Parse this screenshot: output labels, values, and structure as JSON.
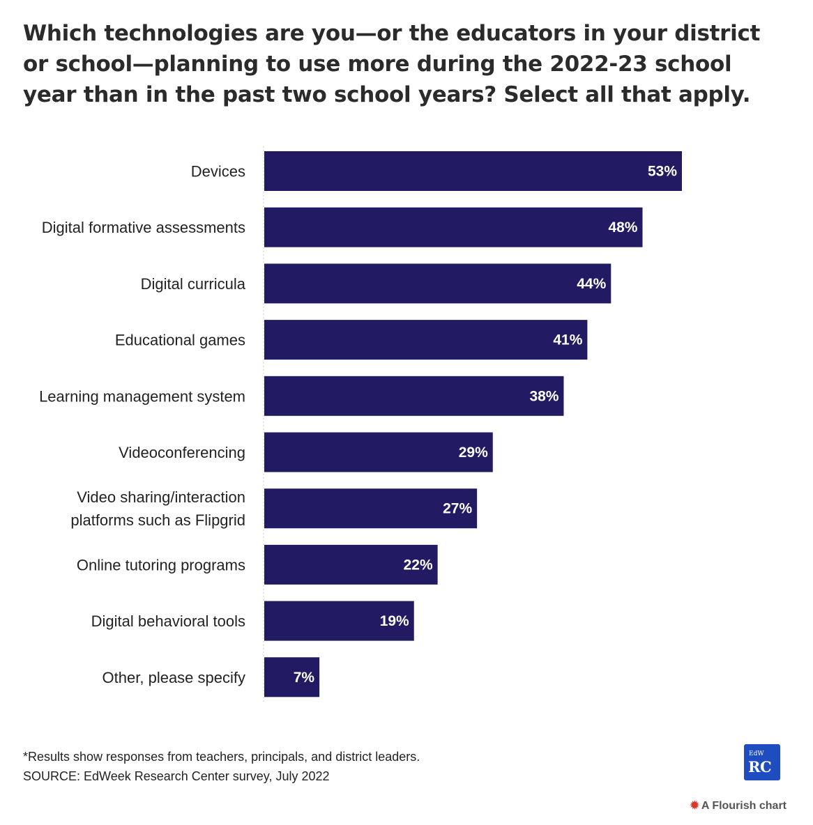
{
  "title": "Which technologies are you—or the educators in your district or school—planning to use more during the 2022-23 school year than in the past two school years? Select all that apply.",
  "footnote": "*Results show responses from teachers, principals, and district leaders.",
  "source": "SOURCE: EdWeek Research Center survey, July 2022",
  "logo": {
    "top": "EdW",
    "bottom": "RC"
  },
  "credit": "A Flourish chart",
  "colors": {
    "bar": "#221a63",
    "axis": "#cccccc",
    "text": "#222222"
  },
  "chart_data": {
    "type": "bar",
    "orientation": "horizontal",
    "categories": [
      [
        "Devices"
      ],
      [
        "Digital formative assessments"
      ],
      [
        "Digital curricula"
      ],
      [
        "Educational games"
      ],
      [
        "Learning management system"
      ],
      [
        "Videoconferencing"
      ],
      [
        "Video sharing/interaction",
        "platforms such as Flipgrid"
      ],
      [
        "Online tutoring programs"
      ],
      [
        "Digital behavioral tools"
      ],
      [
        "Other, please specify"
      ]
    ],
    "values": [
      53,
      48,
      44,
      41,
      38,
      29,
      27,
      22,
      19,
      7
    ],
    "value_labels": [
      "53%",
      "48%",
      "44%",
      "41%",
      "38%",
      "29%",
      "27%",
      "22%",
      "19%",
      "7%"
    ],
    "xlim": [
      0,
      53
    ],
    "grid": false,
    "legend": "none"
  }
}
